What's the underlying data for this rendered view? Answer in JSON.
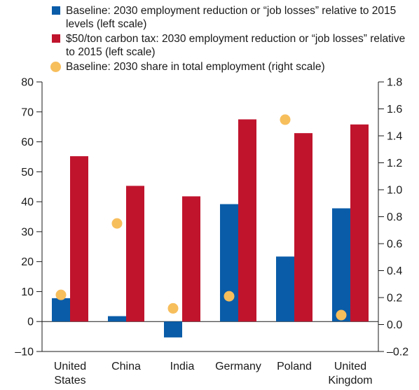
{
  "chart_data": {
    "type": "bar",
    "categories": [
      [
        "United",
        "States"
      ],
      [
        "China"
      ],
      [
        "India"
      ],
      [
        "Germany"
      ],
      [
        "Poland"
      ],
      [
        "United",
        "Kingdom"
      ]
    ],
    "series": [
      {
        "name": "Baseline: 2030 employment reduction or “job losses” relative to 2015 levels (left scale)",
        "type": "bar",
        "axis": "left",
        "color": "#0a5ca8",
        "values": [
          7.8,
          1.8,
          -5.3,
          39.2,
          21.7,
          37.8
        ]
      },
      {
        "name": "$50/ton carbon tax: 2030 employment reduction or “job losses” relative to 2015 (left scale)",
        "type": "bar",
        "axis": "left",
        "color": "#c0142d",
        "values": [
          55.2,
          45.3,
          41.8,
          67.5,
          62.9,
          65.8
        ]
      },
      {
        "name": "Baseline: 2030 share in total employment (right scale)",
        "type": "scatter",
        "axis": "right",
        "color": "#f7be5c",
        "values": [
          0.22,
          0.75,
          0.12,
          0.21,
          1.52,
          0.07
        ]
      }
    ],
    "left_axis": {
      "ylim": [
        -10,
        80
      ],
      "ticks": [
        "80",
        "70",
        "60",
        "50",
        "40",
        "30",
        "20",
        "10",
        "0",
        "–10"
      ],
      "tick_values": [
        80,
        70,
        60,
        50,
        40,
        30,
        20,
        10,
        0,
        -10
      ]
    },
    "right_axis": {
      "ylim": [
        -0.2,
        1.8
      ],
      "ticks": [
        "1.8",
        "1.6",
        "1.4",
        "1.2",
        "1.0",
        "0.8",
        "0.6",
        "0.4",
        "0.2",
        "0.0",
        "–0.2"
      ],
      "tick_values": [
        1.8,
        1.6,
        1.4,
        1.2,
        1.0,
        0.8,
        0.6,
        0.4,
        0.2,
        0.0,
        -0.2
      ]
    },
    "grid": false,
    "legend_position": "top-left"
  }
}
